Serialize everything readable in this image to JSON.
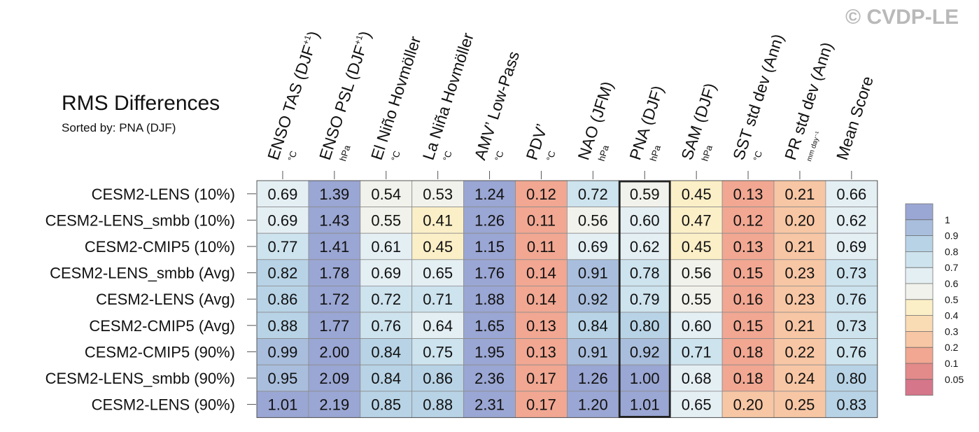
{
  "watermark": "© CVDP-LE",
  "chart_data": {
    "type": "heatmap",
    "title": "RMS Differences",
    "subtitle": "Sorted by: PNA (DJF)",
    "highlight_column": "PNA (DJF)",
    "columns": [
      {
        "label": "ENSO TAS (DJF",
        "superscript": "+1",
        "label_end": ")",
        "unit": "°C"
      },
      {
        "label": "ENSO PSL (DJF",
        "superscript": "+1",
        "label_end": ")",
        "unit": "hPa"
      },
      {
        "label": "El Niño Hovmöller",
        "unit": "°C"
      },
      {
        "label": "La Niña Hovmöller",
        "unit": "°C"
      },
      {
        "label": "AMV’ Low-Pass",
        "unit": "°C"
      },
      {
        "label": "PDV’",
        "unit": "°C"
      },
      {
        "label": "NAO (JFM)",
        "unit": "hPa"
      },
      {
        "label": "PNA (DJF)",
        "unit": "hPa"
      },
      {
        "label": "SAM (DJF)",
        "unit": "hPa"
      },
      {
        "label": "SST std dev (Ann)",
        "unit": "°C"
      },
      {
        "label": "PR std dev (Ann)",
        "unit": "mm day⁻¹"
      },
      {
        "label": "Mean Score",
        "unit": ""
      }
    ],
    "rows": [
      "CESM2-LENS (10%)",
      "CESM2-LENS_smbb (10%)",
      "CESM2-CMIP5 (10%)",
      "CESM2-LENS_smbb (Avg)",
      "CESM2-LENS (Avg)",
      "CESM2-CMIP5 (Avg)",
      "CESM2-CMIP5 (90%)",
      "CESM2-LENS_smbb (90%)",
      "CESM2-LENS (90%)"
    ],
    "values": [
      [
        0.69,
        1.39,
        0.54,
        0.53,
        1.24,
        0.12,
        0.72,
        0.59,
        0.45,
        0.13,
        0.21,
        0.66
      ],
      [
        0.69,
        1.43,
        0.55,
        0.41,
        1.26,
        0.11,
        0.56,
        0.6,
        0.47,
        0.12,
        0.2,
        0.62
      ],
      [
        0.77,
        1.41,
        0.61,
        0.45,
        1.15,
        0.11,
        0.69,
        0.62,
        0.45,
        0.13,
        0.21,
        0.69
      ],
      [
        0.82,
        1.78,
        0.69,
        0.65,
        1.76,
        0.14,
        0.91,
        0.78,
        0.56,
        0.15,
        0.23,
        0.73
      ],
      [
        0.86,
        1.72,
        0.72,
        0.71,
        1.88,
        0.14,
        0.92,
        0.79,
        0.55,
        0.16,
        0.23,
        0.76
      ],
      [
        0.88,
        1.77,
        0.76,
        0.64,
        1.65,
        0.13,
        0.84,
        0.8,
        0.6,
        0.15,
        0.21,
        0.73
      ],
      [
        0.99,
        2.0,
        0.84,
        0.75,
        1.95,
        0.13,
        0.91,
        0.92,
        0.71,
        0.18,
        0.22,
        0.76
      ],
      [
        0.95,
        2.09,
        0.84,
        0.86,
        2.36,
        0.17,
        1.26,
        1.0,
        0.68,
        0.18,
        0.24,
        0.8
      ],
      [
        1.01,
        2.19,
        0.85,
        0.88,
        2.31,
        0.17,
        1.2,
        1.01,
        0.65,
        0.2,
        0.25,
        0.83
      ]
    ],
    "colorbar": {
      "tick_labels": [
        "1",
        "0.9",
        "0.8",
        "0.7",
        "0.6",
        "0.5",
        "0.4",
        "0.3",
        "0.2",
        "0.1",
        "0.05"
      ],
      "bins": [
        {
          "min": 1.0,
          "color": "#9aa6d3"
        },
        {
          "min": 0.9,
          "color": "#a9bedd"
        },
        {
          "min": 0.8,
          "color": "#b8d3e6"
        },
        {
          "min": 0.7,
          "color": "#cde3ee"
        },
        {
          "min": 0.6,
          "color": "#e4eff4"
        },
        {
          "min": 0.5,
          "color": "#f2f2ec"
        },
        {
          "min": 0.4,
          "color": "#fbefc7"
        },
        {
          "min": 0.3,
          "color": "#f9dbb4"
        },
        {
          "min": 0.2,
          "color": "#f7c6a4"
        },
        {
          "min": 0.1,
          "color": "#f1a792"
        },
        {
          "min": 0.05,
          "color": "#e38a8a"
        },
        {
          "min": 0.0,
          "color": "#d6768a"
        }
      ]
    }
  }
}
